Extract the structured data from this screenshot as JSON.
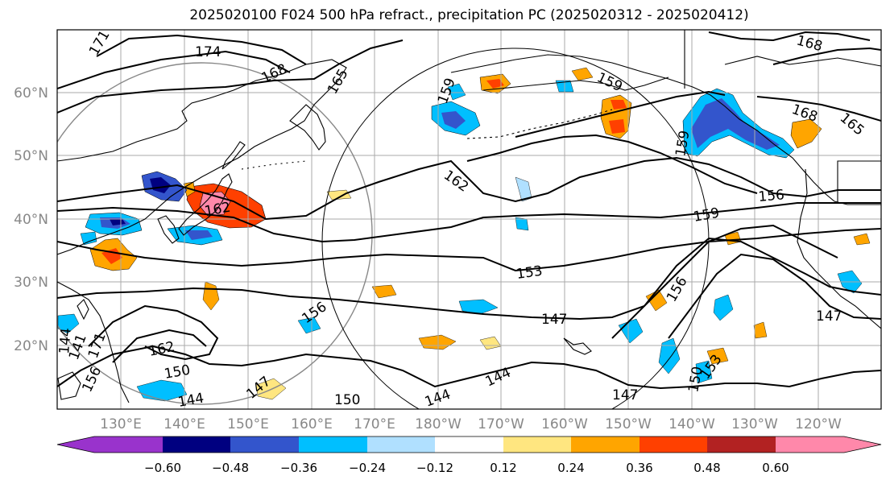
{
  "title": "2025020100 F024 500 hPa refract., precipitation PC (2025020312 - 2025020412)",
  "lat_labels": [
    "60°N",
    "50°N",
    "40°N",
    "30°N",
    "20°N"
  ],
  "lon_labels": [
    "130°E",
    "140°E",
    "150°E",
    "160°E",
    "170°E",
    "180°W",
    "170°W",
    "160°W",
    "150°W",
    "140°W",
    "130°W",
    "120°W"
  ],
  "contour_labels": [
    "171",
    "174",
    "168",
    "165",
    "159",
    "162",
    "159",
    "168",
    "165",
    "159",
    "168",
    "156",
    "162",
    "159",
    "153",
    "156",
    "156",
    "147",
    "147",
    "147",
    "162",
    "150",
    "144",
    "144",
    "150",
    "144",
    "147",
    "150",
    "153",
    "141",
    "156",
    "171",
    "144"
  ],
  "colorbar": {
    "ticks": [
      "−0.60",
      "−0.48",
      "−0.36",
      "−0.24",
      "−0.12",
      "0.12",
      "0.24",
      "0.36",
      "0.48",
      "0.60"
    ],
    "colors": [
      "#9933cc",
      "#000080",
      "#3355cc",
      "#00bfff",
      "#b0e0ff",
      "#ffffff",
      "#ffe680",
      "#ffa500",
      "#ff4000",
      "#b22222",
      "#ff88aa"
    ]
  },
  "colors": {
    "contour": "#000000",
    "coast": "#000000",
    "grid": "#aaaaaa",
    "tick_label": "#888888",
    "circle": "#888888"
  }
}
